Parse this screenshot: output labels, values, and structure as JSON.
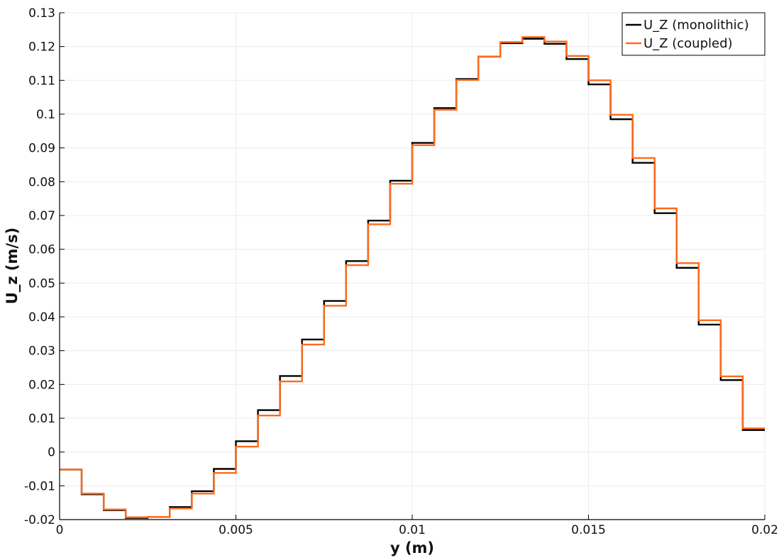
{
  "chart_data": {
    "type": "line",
    "title": "",
    "xlabel": "y (m)",
    "ylabel": "U_z (m/s)",
    "xlim": [
      0,
      0.02
    ],
    "ylim": [
      -0.02,
      0.13
    ],
    "x_ticks": [
      0,
      0.005,
      0.01,
      0.015,
      0.02
    ],
    "x_tick_labels": [
      "0",
      "0.005",
      "0.01",
      "0.015",
      "0.02"
    ],
    "y_ticks": [
      -0.02,
      -0.01,
      0,
      0.01,
      0.02,
      0.03,
      0.04,
      0.05,
      0.06,
      0.07,
      0.08,
      0.09,
      0.1,
      0.11,
      0.12,
      0.13
    ],
    "y_tick_labels": [
      "-0.02",
      "-0.01",
      "0",
      "0.01",
      "0.02",
      "0.03",
      "0.04",
      "0.05",
      "0.06",
      "0.07",
      "0.08",
      "0.09",
      "0.1",
      "0.11",
      "0.12",
      "0.13"
    ],
    "grid": true,
    "legend_position": "top-right",
    "step_edges": [
      0,
      0.000625,
      0.00125,
      0.001875,
      0.0025,
      0.003125,
      0.00375,
      0.004375,
      0.005,
      0.005625,
      0.00625,
      0.006875,
      0.0075,
      0.008125,
      0.00875,
      0.009375,
      0.01,
      0.010625,
      0.01125,
      0.011875,
      0.0125,
      0.013125,
      0.01375,
      0.014375,
      0.015,
      0.015625,
      0.01625,
      0.016875,
      0.0175,
      0.018125,
      0.01875,
      0.019375,
      0.02
    ],
    "series": [
      {
        "name": "U_Z (monolithic)",
        "color": "#000000",
        "step": true,
        "values": [
          -0.0052,
          -0.0125,
          -0.0172,
          -0.0195,
          -0.0192,
          -0.0163,
          -0.0116,
          -0.005,
          0.0032,
          0.0124,
          0.0225,
          0.0333,
          0.0447,
          0.0565,
          0.0685,
          0.0803,
          0.0915,
          0.1018,
          0.1104,
          0.117,
          0.121,
          0.1223,
          0.1208,
          0.1163,
          0.1088,
          0.0985,
          0.0856,
          0.0707,
          0.0545,
          0.0377,
          0.0213,
          0.0065
        ]
      },
      {
        "name": "U_Z (coupled)",
        "color": "#ff6a1a",
        "step": true,
        "values": [
          -0.0052,
          -0.0123,
          -0.017,
          -0.0193,
          -0.0192,
          -0.0167,
          -0.0123,
          -0.0062,
          0.0016,
          0.0108,
          0.0209,
          0.0318,
          0.0433,
          0.0553,
          0.0674,
          0.0794,
          0.0908,
          0.1013,
          0.1101,
          0.117,
          0.1213,
          0.1228,
          0.1215,
          0.1172,
          0.11,
          0.0998,
          0.087,
          0.0721,
          0.0559,
          0.039,
          0.0224,
          0.007
        ]
      }
    ]
  }
}
